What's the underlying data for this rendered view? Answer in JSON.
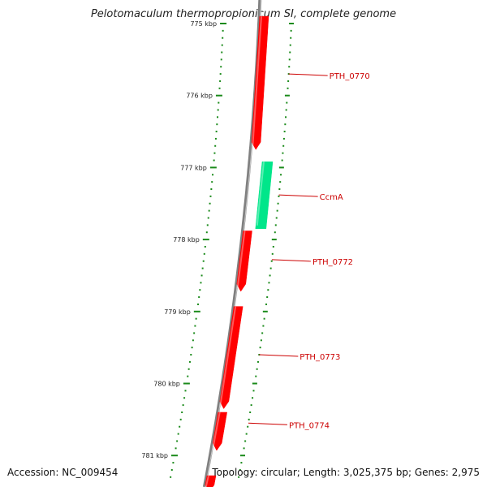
{
  "title": "Pelotomaculum thermopropionicum SI, complete genome",
  "footer": {
    "accession": "Accession: NC_009454",
    "summary": "Topology: circular; Length: 3,025,375 bp; Genes: 2,975"
  },
  "colors": {
    "backbone": "#808080",
    "forward_gene": "#ff0000",
    "reverse_gene": "#00e68a",
    "tick": "#1a8a1a",
    "label": "#cc0000"
  },
  "ruler": {
    "unit": "kbp",
    "major_ticks": [
      {
        "kbp": 775,
        "label": "775 kbp"
      },
      {
        "kbp": 776,
        "label": "776 kbp"
      },
      {
        "kbp": 777,
        "label": "777 kbp"
      },
      {
        "kbp": 778,
        "label": "778 kbp"
      },
      {
        "kbp": 779,
        "label": "779 kbp"
      },
      {
        "kbp": 780,
        "label": "780 kbp"
      },
      {
        "kbp": 781,
        "label": "781 kbp"
      }
    ]
  },
  "genes": [
    {
      "name": "PTH_0770",
      "start_kbp": 774.9,
      "end_kbp": 776.75,
      "strand": "forward",
      "label_kbp": 775.7
    },
    {
      "name": "CcmA",
      "start_kbp": 776.92,
      "end_kbp": 777.85,
      "strand": "reverse",
      "label_kbp": 777.38
    },
    {
      "name": "PTH_0772",
      "start_kbp": 777.88,
      "end_kbp": 778.72,
      "strand": "forward",
      "label_kbp": 778.28
    },
    {
      "name": "PTH_0773",
      "start_kbp": 778.93,
      "end_kbp": 780.35,
      "strand": "forward",
      "label_kbp": 779.6
    },
    {
      "name": "PTH_0774",
      "start_kbp": 780.4,
      "end_kbp": 780.93,
      "strand": "forward",
      "label_kbp": 780.55
    },
    {
      "name": "",
      "start_kbp": 781.28,
      "end_kbp": 781.5,
      "strand": "forward",
      "label_kbp": null
    }
  ]
}
